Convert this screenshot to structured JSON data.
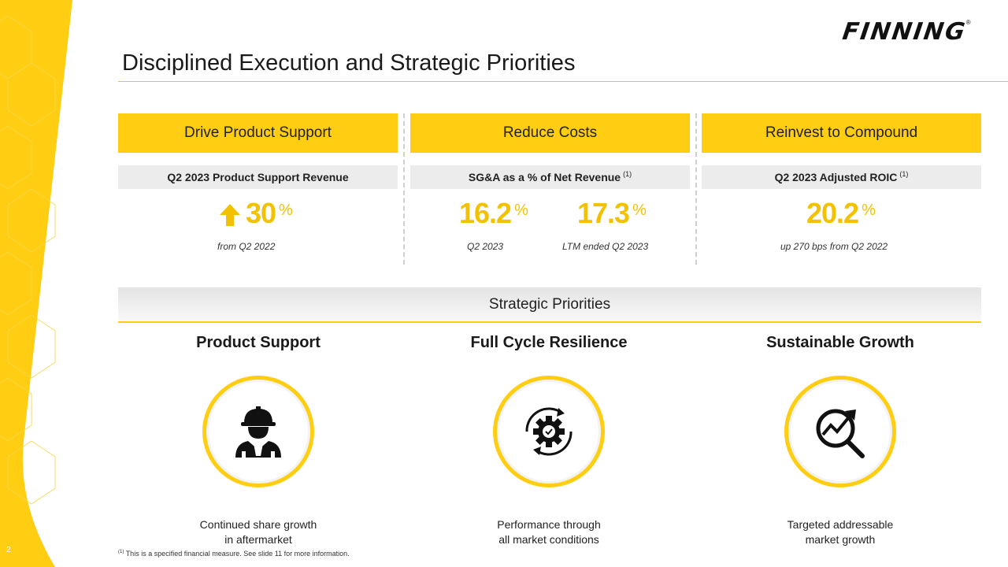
{
  "slide": {
    "number": "2",
    "logo": "FINNING",
    "title": "Disciplined Execution and Strategic Priorities"
  },
  "columns": [
    {
      "header": "Drive Product Support",
      "metric_label": "Q2 2023 Product Support Revenue",
      "metric_note": "",
      "values": [
        {
          "value": "30",
          "unit": "%",
          "caption": "from Q2 2022"
        }
      ]
    },
    {
      "header": "Reduce Costs",
      "metric_label": "SG&A as a % of Net Revenue",
      "metric_note": "(1)",
      "values": [
        {
          "value": "16.2",
          "unit": "%",
          "caption": "Q2 2023"
        },
        {
          "value": "17.3",
          "unit": "%",
          "caption": "LTM ended Q2 2023"
        }
      ]
    },
    {
      "header": "Reinvest to Compound",
      "metric_label": "Q2 2023 Adjusted ROIC",
      "metric_note": "(1)",
      "values": [
        {
          "value": "20.2",
          "unit": "%",
          "caption": "up 270 bps from Q2 2022"
        }
      ]
    }
  ],
  "strategic": {
    "heading": "Strategic Priorities",
    "items": [
      {
        "title": "Product Support",
        "icon": "worker-icon",
        "desc_line1": "Continued share growth",
        "desc_line2": "in aftermarket"
      },
      {
        "title": "Full Cycle Resilience",
        "icon": "gear-cycle-icon",
        "desc_line1": "Performance through",
        "desc_line2": "all market conditions"
      },
      {
        "title": "Sustainable Growth",
        "icon": "growth-magnifier-icon",
        "desc_line1": "Targeted addressable",
        "desc_line2": "market growth"
      }
    ]
  },
  "footnote": {
    "mark": "(1)",
    "text": "This is a specified financial measure. See slide 11 for more information."
  },
  "colors": {
    "accent": "#ffcd11",
    "value": "#f2c200"
  }
}
